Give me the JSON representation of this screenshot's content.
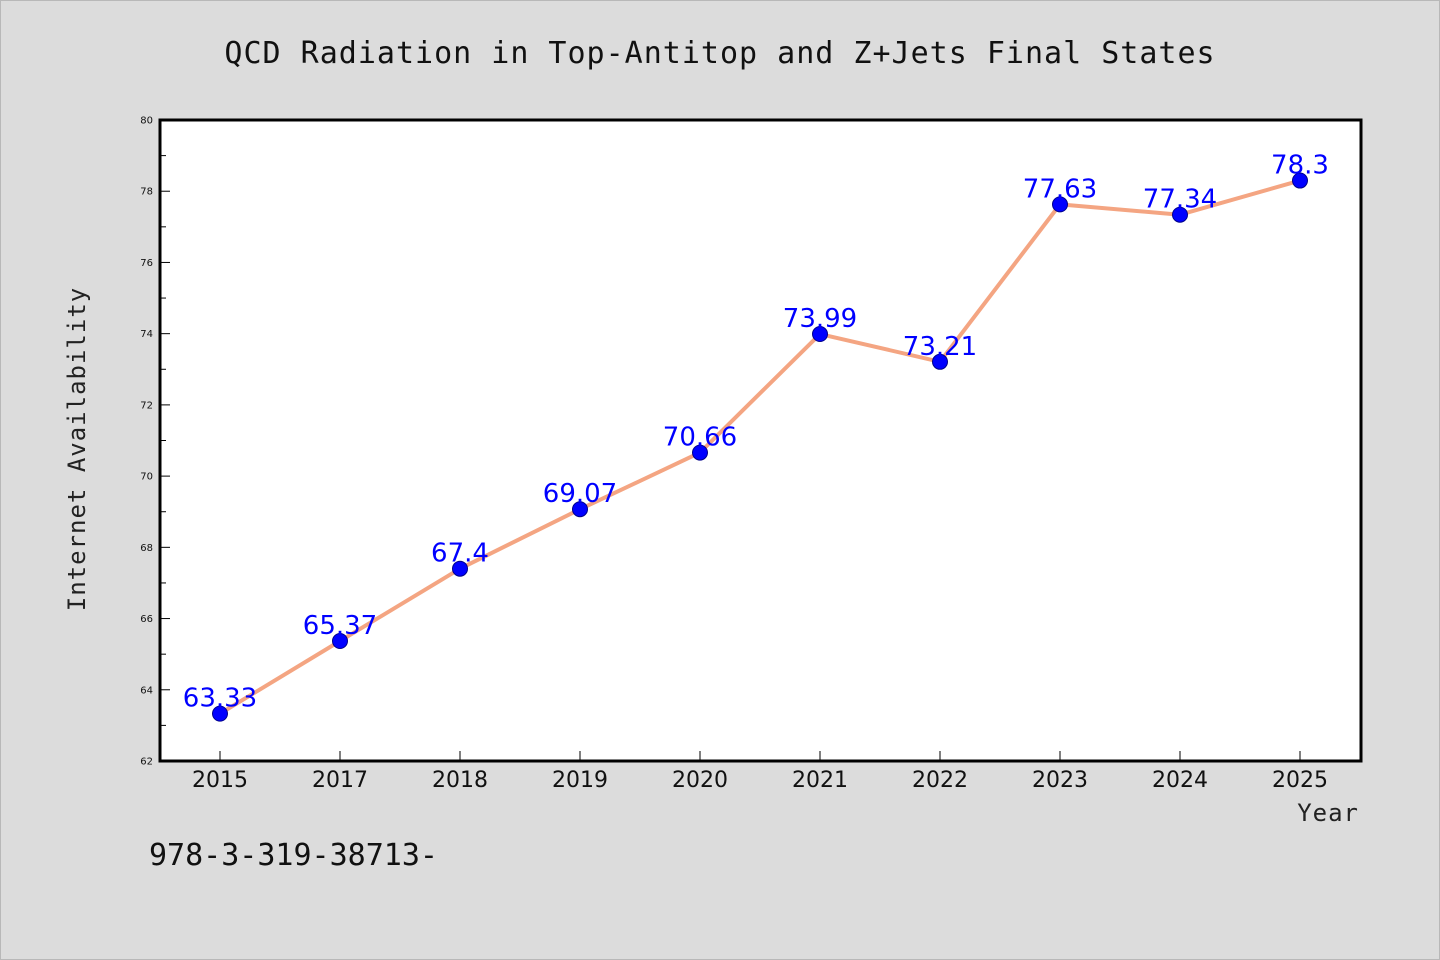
{
  "chart_data": {
    "type": "line",
    "title": "QCD Radiation in Top-Antitop and Z+Jets Final States",
    "xlabel": "Year",
    "ylabel": "Internet Availability",
    "categories": [
      "2015",
      "2017",
      "2018",
      "2019",
      "2020",
      "2021",
      "2022",
      "2023",
      "2024",
      "2025"
    ],
    "series": [
      {
        "values": [
          63.33,
          65.37,
          67.4,
          69.07,
          70.66,
          73.99,
          73.21,
          77.63,
          77.34,
          78.3
        ],
        "labels": [
          "63.33",
          "65.37",
          "67.4",
          "69.07",
          "70.66",
          "73.99",
          "73.21",
          "77.63",
          "77.34",
          "78.3"
        ]
      }
    ],
    "ylim": [
      62,
      80
    ],
    "yticks": [
      "62",
      "64",
      "66",
      "68",
      "70",
      "72",
      "74",
      "76",
      "78",
      "80"
    ],
    "line_color": "#f4a582",
    "marker_color": "#0000ff",
    "label_color": "#0000ff",
    "grid": false
  },
  "footer": {
    "text": "978-3-319-38713-"
  }
}
